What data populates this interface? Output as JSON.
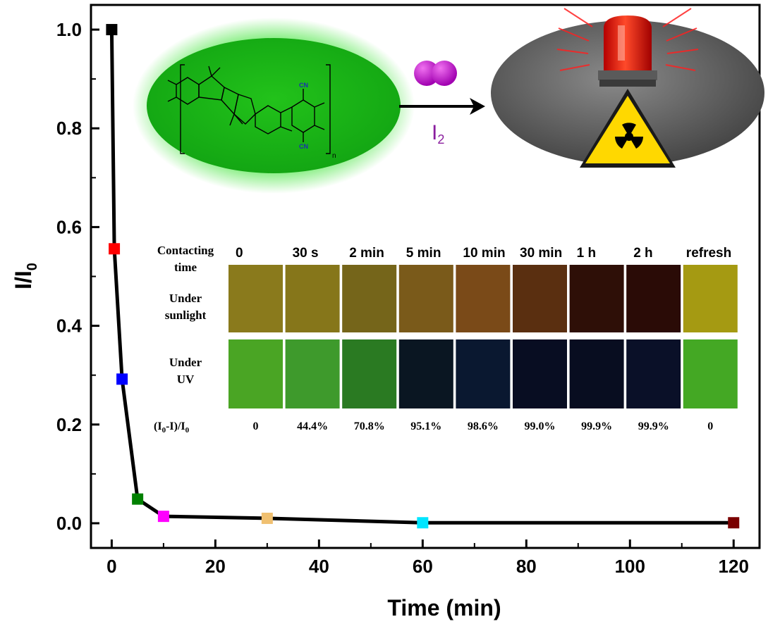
{
  "chart_data": {
    "type": "line",
    "xlabel": "Time (min)",
    "ylabel": "I/I",
    "ylabel_sub": "0",
    "xlim": [
      -4,
      125
    ],
    "ylim": [
      -0.05,
      1.05
    ],
    "xticks": [
      0,
      20,
      40,
      60,
      80,
      100,
      120
    ],
    "yticks": [
      0.0,
      0.2,
      0.4,
      0.6,
      0.8,
      1.0
    ],
    "ytick_labels": [
      "0.0",
      "0.2",
      "0.4",
      "0.6",
      "0.8",
      "1.0"
    ],
    "grid": false,
    "points": [
      {
        "x": 0,
        "y": 1.0,
        "color": "#000000"
      },
      {
        "x": 0.5,
        "y": 0.556,
        "color": "#ff0000"
      },
      {
        "x": 2,
        "y": 0.292,
        "color": "#0000ff"
      },
      {
        "x": 5,
        "y": 0.049,
        "color": "#008000"
      },
      {
        "x": 10,
        "y": 0.014,
        "color": "#ff00ff"
      },
      {
        "x": 30,
        "y": 0.01,
        "color": "#f0c070"
      },
      {
        "x": 60,
        "y": 0.001,
        "color": "#00e5ff"
      },
      {
        "x": 120,
        "y": 0.001,
        "color": "#7a0000"
      }
    ]
  },
  "scheme": {
    "cn_label": "CN",
    "n_label": "n",
    "reagent_label": "I",
    "reagent_sub": "2"
  },
  "inset": {
    "row_header_time_line1": "Contacting",
    "row_header_time_line2": "time",
    "row_header_sun_line1": "Under",
    "row_header_sun_line2": "sunlight",
    "row_header_uv_line1": "Under",
    "row_header_uv_line2": "UV",
    "eff_prefix": "(I",
    "eff_sub1": "0",
    "eff_mid": "-I)/I",
    "eff_sub2": "0",
    "times": [
      "0",
      "30 s",
      "2 min",
      "5 min",
      "10 min",
      "30 min",
      "1 h",
      "2 h",
      "refresh"
    ],
    "efficiencies": [
      "0",
      "44.4%",
      "70.8%",
      "95.1%",
      "98.6%",
      "99.0%",
      "99.9%",
      "99.9%",
      "0"
    ],
    "sun_colors": [
      "#8a7a1c",
      "#86761a",
      "#75651a",
      "#7a5a1a",
      "#7a4a18",
      "#5a2f10",
      "#2e0f07",
      "#2a0b06",
      "#a59a12"
    ],
    "uv_colors": [
      "#4aa524",
      "#3e9a2c",
      "#2a7a22",
      "#0a1622",
      "#0a1830",
      "#080d22",
      "#080d20",
      "#0a1028",
      "#44a824"
    ]
  }
}
